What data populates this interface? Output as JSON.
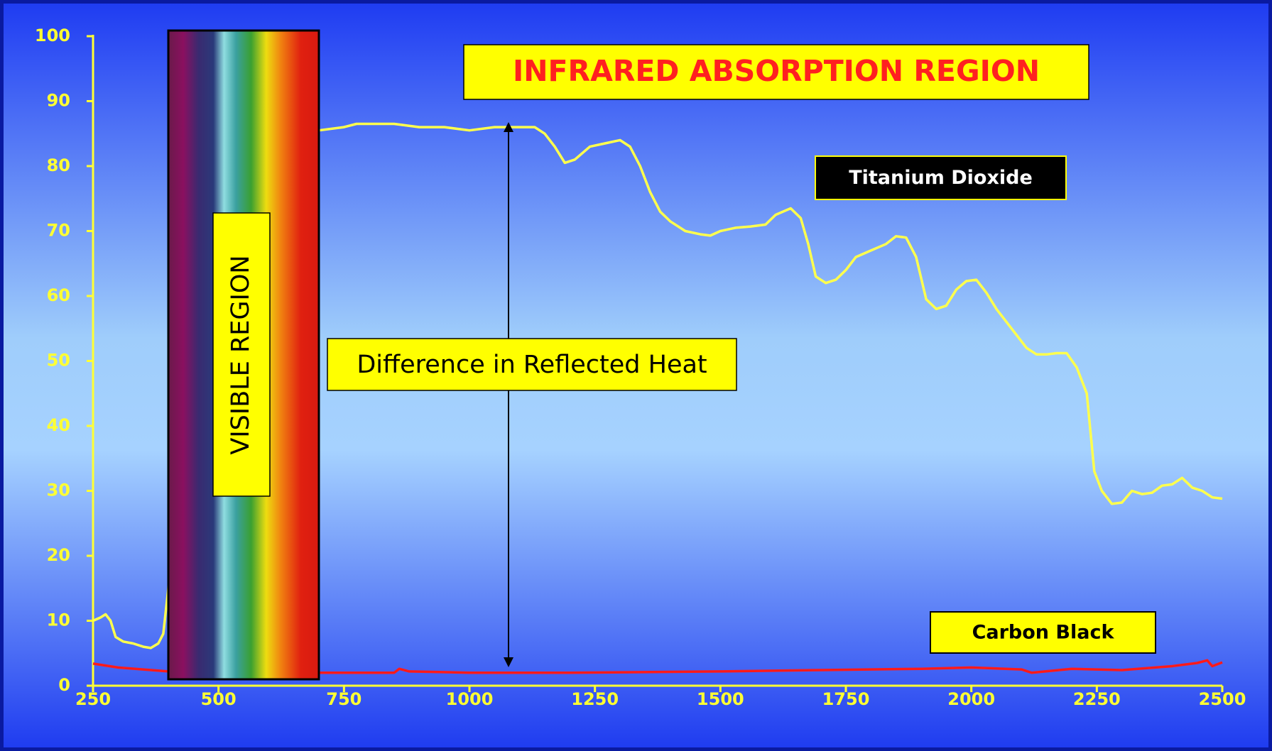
{
  "chart_data": {
    "type": "line",
    "title": "INFRARED ABSORPTION REGION",
    "visible_label": "VISIBLE REGION",
    "visible_range": [
      400,
      700
    ],
    "annotation": "Difference in Reflected Heat",
    "xlim": [
      250,
      2500
    ],
    "xticks": [
      250,
      500,
      750,
      1000,
      1250,
      1500,
      1750,
      2000,
      2250,
      2500
    ],
    "ylim": [
      0,
      100
    ],
    "yticks": [
      0,
      10,
      20,
      30,
      40,
      50,
      60,
      70,
      80,
      90,
      100
    ],
    "series": [
      {
        "name": "Titanium Dioxide",
        "color": "#ffff4d",
        "x": [
          250,
          265,
          275,
          285,
          295,
          310,
          330,
          350,
          365,
          380,
          390,
          400,
          410,
          420,
          440,
          460,
          500,
          700,
          750,
          775,
          800,
          850,
          900,
          950,
          1000,
          1050,
          1100,
          1130,
          1150,
          1170,
          1190,
          1210,
          1240,
          1270,
          1300,
          1320,
          1340,
          1360,
          1380,
          1400,
          1430,
          1460,
          1480,
          1500,
          1530,
          1560,
          1590,
          1610,
          1640,
          1660,
          1675,
          1690,
          1710,
          1730,
          1750,
          1770,
          1800,
          1830,
          1850,
          1870,
          1890,
          1910,
          1930,
          1950,
          1970,
          1990,
          2010,
          2030,
          2050,
          2070,
          2090,
          2110,
          2130,
          2150,
          2170,
          2190,
          2210,
          2230,
          2245,
          2260,
          2280,
          2300,
          2320,
          2340,
          2360,
          2380,
          2400,
          2420,
          2440,
          2460,
          2480,
          2500
        ],
        "values": [
          10,
          10.5,
          11,
          10,
          7.5,
          6.8,
          6.5,
          6,
          5.8,
          6.5,
          8,
          15,
          30,
          50,
          75,
          84,
          85.5,
          85.5,
          86,
          86.5,
          86.5,
          86.5,
          86,
          86,
          85.5,
          86,
          86,
          86,
          85,
          83,
          80.5,
          81,
          83,
          83.5,
          84,
          83,
          80,
          76,
          73,
          71.5,
          70,
          69.5,
          69.3,
          70,
          70.5,
          70.7,
          71,
          72.5,
          73.5,
          72,
          68,
          63,
          62,
          62.5,
          64,
          66,
          67,
          68,
          69.2,
          69,
          66,
          59.5,
          58,
          58.5,
          61,
          62.3,
          62.5,
          60.5,
          58,
          56,
          54,
          52,
          51,
          51,
          51.2,
          51.2,
          49,
          45,
          33,
          30,
          28,
          28.2,
          30,
          29.5,
          29.7,
          30.8,
          31,
          32,
          30.5,
          30,
          29,
          28.8
        ]
      },
      {
        "name": "Carbon Black",
        "color": "#ff1a1a",
        "x": [
          250,
          300,
          400,
          500,
          700,
          850,
          860,
          880,
          1000,
          1200,
          1500,
          1700,
          1900,
          2000,
          2100,
          2120,
          2200,
          2300,
          2400,
          2450,
          2470,
          2480,
          2500
        ],
        "values": [
          3.4,
          2.8,
          2.2,
          2,
          2,
          2,
          2.6,
          2.2,
          2,
          2,
          2.2,
          2.4,
          2.6,
          2.8,
          2.5,
          2,
          2.6,
          2.4,
          3,
          3.5,
          3.9,
          3,
          3.6
        ]
      }
    ]
  }
}
